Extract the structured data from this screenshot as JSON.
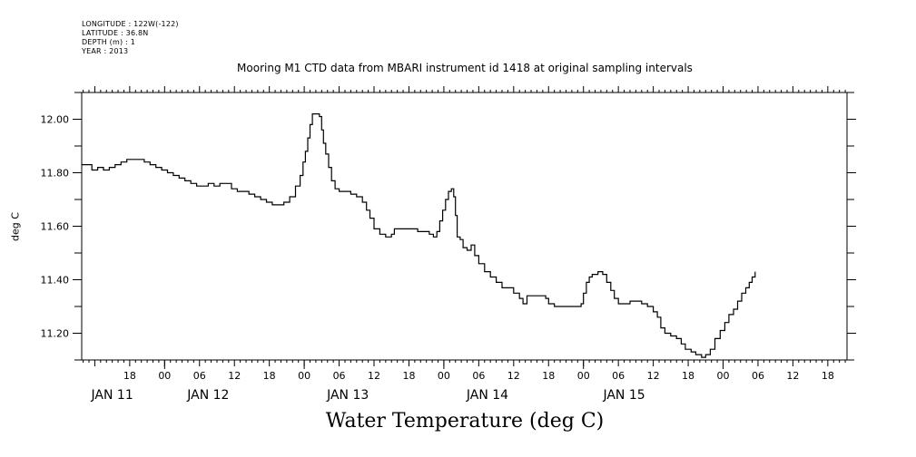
{
  "meta": {
    "longitude": "LONGITUDE : 122W(-122)",
    "latitude": "LATITUDE : 36.8N",
    "depth": "DEPTH (m) : 1",
    "year": "YEAR : 2013"
  },
  "chart_data": {
    "type": "line",
    "title": "Mooring M1 CTD data from MBARI instrument id 1418 at original sampling intervals",
    "xlabel": "Water Temperature (deg C)",
    "ylabel": "deg C",
    "x_unit": "hours since JAN 11 00:00",
    "xlim": [
      9.75,
      141.3
    ],
    "ylim": [
      11.1,
      12.1
    ],
    "y_ticks": [
      11.2,
      11.4,
      11.6,
      11.8,
      12.0
    ],
    "y_tick_labels": [
      "11.20",
      "11.40",
      "11.60",
      "11.80",
      "12.00"
    ],
    "x_hour_ticks": [
      {
        "x": 18,
        "label": "18"
      },
      {
        "x": 24,
        "label": "00"
      },
      {
        "x": 30,
        "label": "06"
      },
      {
        "x": 36,
        "label": "12"
      },
      {
        "x": 42,
        "label": "18"
      },
      {
        "x": 48,
        "label": "00"
      },
      {
        "x": 54,
        "label": "06"
      },
      {
        "x": 60,
        "label": "12"
      },
      {
        "x": 66,
        "label": "18"
      },
      {
        "x": 72,
        "label": "00"
      },
      {
        "x": 78,
        "label": "06"
      },
      {
        "x": 84,
        "label": "12"
      },
      {
        "x": 90,
        "label": "18"
      },
      {
        "x": 96,
        "label": "00"
      },
      {
        "x": 102,
        "label": "06"
      },
      {
        "x": 108,
        "label": "12"
      },
      {
        "x": 114,
        "label": "18"
      },
      {
        "x": 120,
        "label": "00"
      },
      {
        "x": 126,
        "label": "06"
      },
      {
        "x": 132,
        "label": "12"
      },
      {
        "x": 138,
        "label": "18"
      }
    ],
    "x_day_labels": [
      {
        "x": 15,
        "label": "JAN 11"
      },
      {
        "x": 31.5,
        "label": "JAN 12"
      },
      {
        "x": 55.5,
        "label": "JAN 13"
      },
      {
        "x": 79.5,
        "label": "JAN 14"
      },
      {
        "x": 103,
        "label": "JAN 15"
      }
    ],
    "series": [
      {
        "points": [
          [
            9.75,
            11.83
          ],
          [
            10.5,
            11.83
          ],
          [
            11.5,
            11.81
          ],
          [
            12.5,
            11.82
          ],
          [
            13.5,
            11.81
          ],
          [
            14.5,
            11.82
          ],
          [
            15.5,
            11.83
          ],
          [
            16.5,
            11.84
          ],
          [
            17.5,
            11.85
          ],
          [
            18.5,
            11.85
          ],
          [
            19.5,
            11.85
          ],
          [
            20.5,
            11.84
          ],
          [
            21.5,
            11.83
          ],
          [
            22.5,
            11.82
          ],
          [
            23.5,
            11.81
          ],
          [
            24.5,
            11.8
          ],
          [
            25.5,
            11.79
          ],
          [
            26.5,
            11.78
          ],
          [
            27.5,
            11.77
          ],
          [
            28.5,
            11.76
          ],
          [
            29.5,
            11.75
          ],
          [
            30.5,
            11.75
          ],
          [
            31.5,
            11.76
          ],
          [
            32.5,
            11.75
          ],
          [
            33.5,
            11.76
          ],
          [
            34.5,
            11.76
          ],
          [
            35.5,
            11.74
          ],
          [
            36.5,
            11.73
          ],
          [
            37.5,
            11.73
          ],
          [
            38.5,
            11.72
          ],
          [
            39.5,
            11.71
          ],
          [
            40.5,
            11.7
          ],
          [
            41.5,
            11.69
          ],
          [
            42.5,
            11.68
          ],
          [
            43.5,
            11.68
          ],
          [
            44.5,
            11.69
          ],
          [
            45.5,
            11.71
          ],
          [
            46.5,
            11.75
          ],
          [
            47.3,
            11.79
          ],
          [
            47.8,
            11.84
          ],
          [
            48.2,
            11.88
          ],
          [
            48.6,
            11.93
          ],
          [
            49.0,
            11.98
          ],
          [
            49.4,
            12.02
          ],
          [
            50.0,
            12.02
          ],
          [
            50.6,
            12.01
          ],
          [
            51.0,
            11.96
          ],
          [
            51.3,
            11.91
          ],
          [
            51.7,
            11.87
          ],
          [
            52.2,
            11.82
          ],
          [
            52.7,
            11.77
          ],
          [
            53.3,
            11.74
          ],
          [
            54.0,
            11.73
          ],
          [
            55.0,
            11.73
          ],
          [
            56.0,
            11.72
          ],
          [
            57.0,
            11.71
          ],
          [
            58.0,
            11.69
          ],
          [
            58.7,
            11.66
          ],
          [
            59.3,
            11.63
          ],
          [
            60.0,
            11.59
          ],
          [
            61.0,
            11.57
          ],
          [
            62.0,
            11.56
          ],
          [
            63.0,
            11.57
          ],
          [
            63.5,
            11.59
          ],
          [
            64.5,
            11.59
          ],
          [
            65.5,
            11.59
          ],
          [
            66.5,
            11.59
          ],
          [
            67.5,
            11.58
          ],
          [
            68.5,
            11.58
          ],
          [
            69.5,
            11.57
          ],
          [
            70.2,
            11.56
          ],
          [
            70.8,
            11.58
          ],
          [
            71.3,
            11.62
          ],
          [
            71.8,
            11.66
          ],
          [
            72.3,
            11.7
          ],
          [
            72.8,
            11.73
          ],
          [
            73.3,
            11.74
          ],
          [
            73.7,
            11.71
          ],
          [
            74.0,
            11.64
          ],
          [
            74.3,
            11.56
          ],
          [
            74.8,
            11.55
          ],
          [
            75.3,
            11.52
          ],
          [
            76.0,
            11.51
          ],
          [
            76.7,
            11.53
          ],
          [
            77.3,
            11.49
          ],
          [
            78.0,
            11.46
          ],
          [
            79.0,
            11.43
          ],
          [
            80.0,
            11.41
          ],
          [
            81.0,
            11.39
          ],
          [
            82.0,
            11.37
          ],
          [
            83.0,
            11.37
          ],
          [
            84.0,
            11.35
          ],
          [
            85.0,
            11.33
          ],
          [
            85.6,
            11.31
          ],
          [
            86.3,
            11.34
          ],
          [
            87.5,
            11.34
          ],
          [
            88.5,
            11.34
          ],
          [
            89.5,
            11.33
          ],
          [
            90.0,
            11.31
          ],
          [
            91.0,
            11.3
          ],
          [
            92.0,
            11.3
          ],
          [
            93.0,
            11.3
          ],
          [
            94.0,
            11.3
          ],
          [
            95.0,
            11.3
          ],
          [
            95.6,
            11.31
          ],
          [
            96.0,
            11.35
          ],
          [
            96.5,
            11.39
          ],
          [
            97.0,
            11.41
          ],
          [
            97.5,
            11.42
          ],
          [
            98.5,
            11.43
          ],
          [
            99.3,
            11.42
          ],
          [
            100.0,
            11.39
          ],
          [
            100.7,
            11.36
          ],
          [
            101.3,
            11.33
          ],
          [
            102.0,
            11.31
          ],
          [
            103.0,
            11.31
          ],
          [
            104.0,
            11.32
          ],
          [
            105.0,
            11.32
          ],
          [
            106.0,
            11.31
          ],
          [
            107.0,
            11.3
          ],
          [
            108.0,
            11.28
          ],
          [
            108.7,
            11.26
          ],
          [
            109.3,
            11.22
          ],
          [
            110.0,
            11.2
          ],
          [
            111.0,
            11.19
          ],
          [
            112.0,
            11.18
          ],
          [
            112.8,
            11.16
          ],
          [
            113.5,
            11.14
          ],
          [
            114.5,
            11.13
          ],
          [
            115.3,
            11.12
          ],
          [
            116.3,
            11.11
          ],
          [
            117.0,
            11.12
          ],
          [
            117.8,
            11.14
          ],
          [
            118.6,
            11.18
          ],
          [
            119.5,
            11.21
          ],
          [
            120.3,
            11.24
          ],
          [
            121.0,
            11.27
          ],
          [
            121.8,
            11.29
          ],
          [
            122.5,
            11.32
          ],
          [
            123.2,
            11.35
          ],
          [
            123.9,
            11.37
          ],
          [
            124.5,
            11.39
          ],
          [
            125.0,
            11.41
          ],
          [
            125.5,
            11.43
          ]
        ]
      }
    ]
  }
}
